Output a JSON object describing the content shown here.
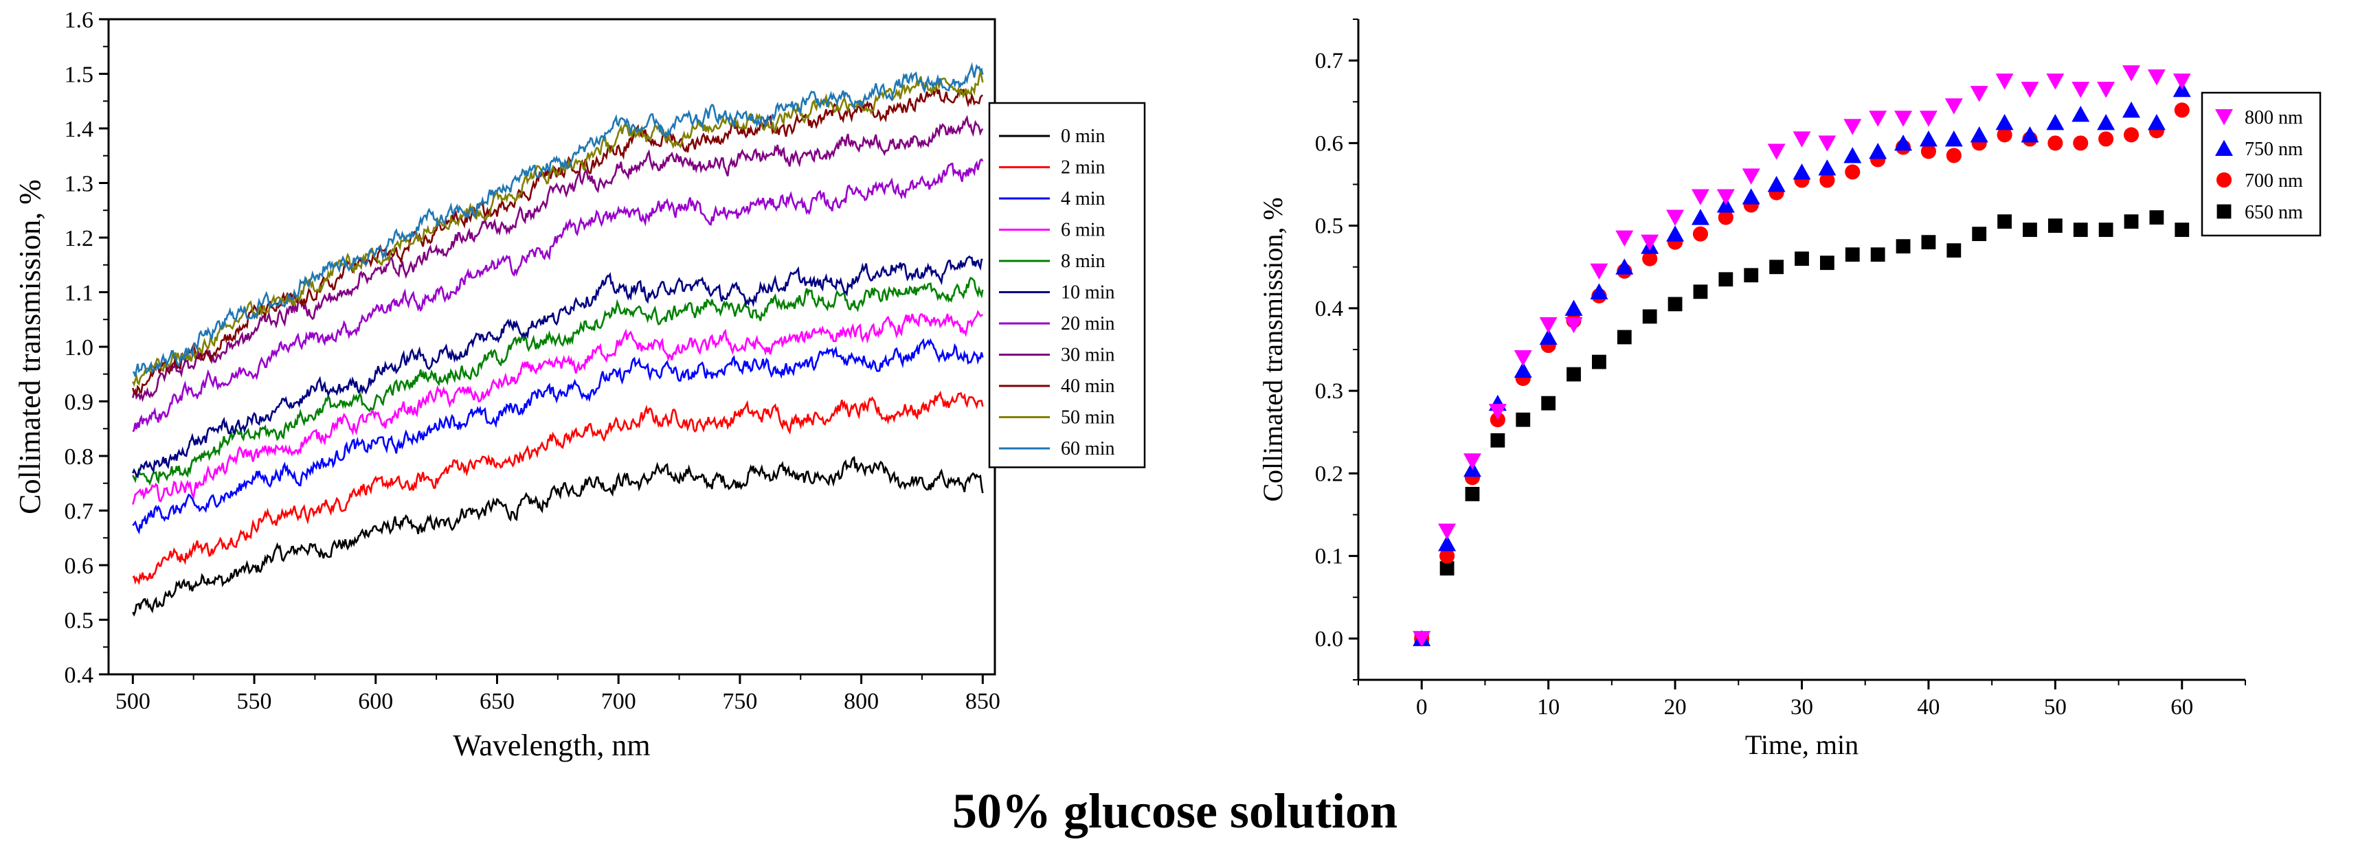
{
  "caption": "50% glucose solution",
  "chart_data": [
    {
      "type": "line",
      "xlabel": "Wavelength, nm",
      "ylabel": "Collimated transmission, %",
      "xlim": [
        490,
        855
      ],
      "ylim": [
        0.4,
        1.6
      ],
      "xticks": [
        500,
        550,
        600,
        650,
        700,
        750,
        800,
        850
      ],
      "yticks": [
        0.4,
        0.5,
        0.6,
        0.7,
        0.8,
        0.9,
        1.0,
        1.1,
        1.2,
        1.3,
        1.4,
        1.5,
        1.6
      ],
      "x": [
        500,
        550,
        600,
        650,
        700,
        750,
        800,
        850
      ],
      "series": [
        {
          "name": "0 min",
          "color": "#000000",
          "values": [
            0.52,
            0.6,
            0.66,
            0.7,
            0.76,
            0.76,
            0.77,
            0.74
          ]
        },
        {
          "name": "2 min",
          "color": "#ff0000",
          "values": [
            0.58,
            0.67,
            0.74,
            0.79,
            0.86,
            0.87,
            0.88,
            0.9
          ]
        },
        {
          "name": "4 min",
          "color": "#0000ff",
          "values": [
            0.67,
            0.75,
            0.82,
            0.88,
            0.95,
            0.96,
            0.98,
            0.99
          ]
        },
        {
          "name": "6 min",
          "color": "#ff00ff",
          "values": [
            0.71,
            0.8,
            0.87,
            0.93,
            1.0,
            1.0,
            1.03,
            1.05
          ]
        },
        {
          "name": "8 min",
          "color": "#008000",
          "values": [
            0.75,
            0.84,
            0.91,
            0.98,
            1.06,
            1.07,
            1.09,
            1.11
          ]
        },
        {
          "name": "10 min",
          "color": "#000080",
          "values": [
            0.77,
            0.87,
            0.95,
            1.02,
            1.11,
            1.1,
            1.13,
            1.15
          ]
        },
        {
          "name": "20 min",
          "color": "#9900cc",
          "values": [
            0.86,
            0.97,
            1.06,
            1.14,
            1.25,
            1.25,
            1.28,
            1.32
          ]
        },
        {
          "name": "30 min",
          "color": "#800080",
          "values": [
            0.91,
            1.03,
            1.13,
            1.22,
            1.33,
            1.34,
            1.37,
            1.4
          ]
        },
        {
          "name": "40 min",
          "color": "#800000",
          "values": [
            0.92,
            1.05,
            1.16,
            1.26,
            1.37,
            1.39,
            1.43,
            1.47
          ]
        },
        {
          "name": "50 min",
          "color": "#808000",
          "values": [
            0.93,
            1.06,
            1.17,
            1.27,
            1.38,
            1.41,
            1.45,
            1.49
          ]
        },
        {
          "name": "60 min",
          "color": "#1f77b4",
          "values": [
            0.94,
            1.07,
            1.18,
            1.28,
            1.4,
            1.42,
            1.46,
            1.5
          ]
        }
      ]
    },
    {
      "type": "scatter",
      "xlabel": "Time, min",
      "ylabel": "Collimated transmission, %",
      "xlim": [
        -5,
        65
      ],
      "ylim": [
        -0.05,
        0.75
      ],
      "xticks": [
        0,
        10,
        20,
        30,
        40,
        50,
        60
      ],
      "yticks": [
        0.0,
        0.1,
        0.2,
        0.3,
        0.4,
        0.5,
        0.6,
        0.7
      ],
      "x": [
        0,
        2,
        4,
        6,
        8,
        10,
        12,
        14,
        16,
        18,
        20,
        22,
        24,
        26,
        28,
        30,
        32,
        34,
        36,
        38,
        40,
        42,
        44,
        46,
        48,
        50,
        52,
        54,
        56,
        58,
        60
      ],
      "series": [
        {
          "name": "800 nm",
          "color": "#ff00ff",
          "marker": "triangle-down",
          "values": [
            0.0,
            0.13,
            0.215,
            0.275,
            0.34,
            0.38,
            0.38,
            0.445,
            0.485,
            0.48,
            0.51,
            0.535,
            0.535,
            0.56,
            0.59,
            0.605,
            0.6,
            0.62,
            0.63,
            0.63,
            0.63,
            0.645,
            0.66,
            0.675,
            0.665,
            0.675,
            0.665,
            0.665,
            0.685,
            0.68,
            0.675
          ]
        },
        {
          "name": "750 nm",
          "color": "#0000ff",
          "marker": "triangle-up",
          "values": [
            0.0,
            0.115,
            0.205,
            0.285,
            0.325,
            0.365,
            0.4,
            0.42,
            0.45,
            0.475,
            0.49,
            0.51,
            0.525,
            0.535,
            0.55,
            0.565,
            0.57,
            0.585,
            0.59,
            0.6,
            0.605,
            0.605,
            0.61,
            0.625,
            0.61,
            0.625,
            0.635,
            0.625,
            0.64,
            0.625,
            0.665
          ]
        },
        {
          "name": "700 nm",
          "color": "#ff0000",
          "marker": "circle",
          "values": [
            0.0,
            0.1,
            0.195,
            0.265,
            0.315,
            0.355,
            0.385,
            0.415,
            0.445,
            0.46,
            0.48,
            0.49,
            0.51,
            0.525,
            0.54,
            0.555,
            0.555,
            0.565,
            0.58,
            0.595,
            0.59,
            0.585,
            0.6,
            0.61,
            0.605,
            0.6,
            0.6,
            0.605,
            0.61,
            0.615,
            0.64
          ]
        },
        {
          "name": "650 nm",
          "color": "#000000",
          "marker": "square",
          "values": [
            0.0,
            0.085,
            0.175,
            0.24,
            0.265,
            0.285,
            0.32,
            0.335,
            0.365,
            0.39,
            0.405,
            0.42,
            0.435,
            0.44,
            0.45,
            0.46,
            0.455,
            0.465,
            0.465,
            0.475,
            0.48,
            0.47,
            0.49,
            0.505,
            0.495,
            0.5,
            0.495,
            0.495,
            0.505,
            0.51,
            0.495
          ]
        }
      ]
    }
  ]
}
